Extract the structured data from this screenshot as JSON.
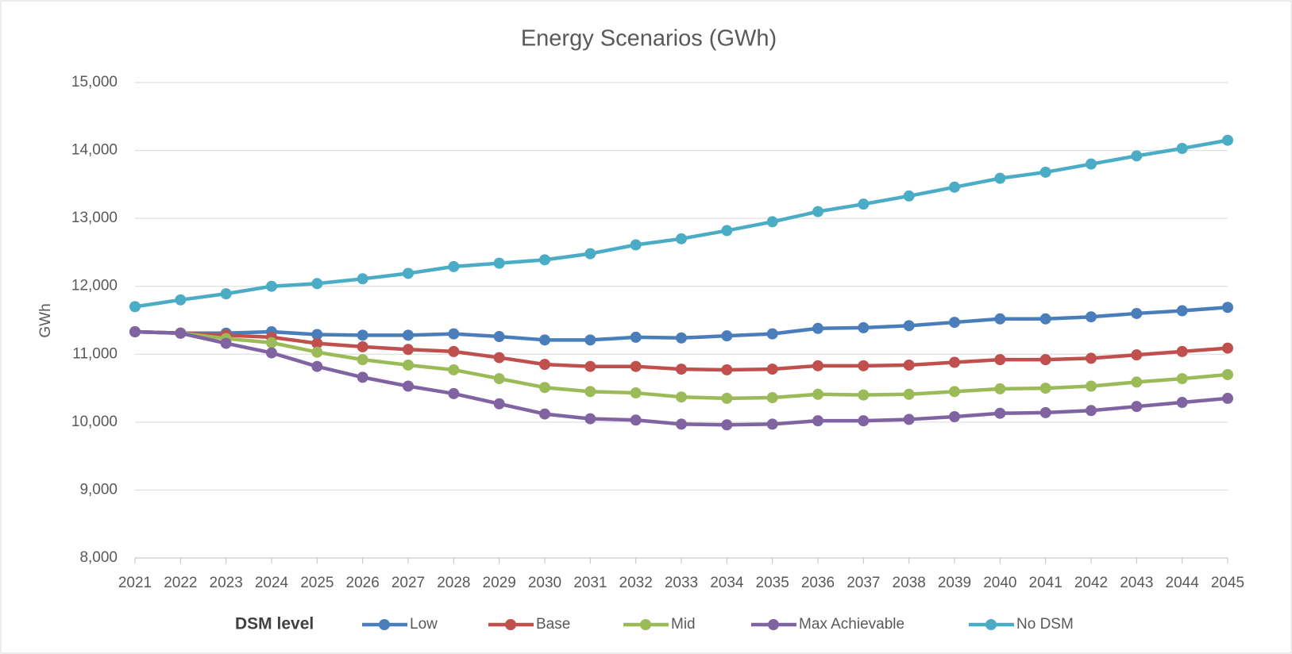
{
  "chart_data": {
    "type": "line",
    "title": "Energy Scenarios (GWh)",
    "y_label": "GWh",
    "categories": [
      "2021",
      "2022",
      "2023",
      "2024",
      "2025",
      "2026",
      "2027",
      "2028",
      "2029",
      "2030",
      "2031",
      "2032",
      "2033",
      "2034",
      "2035",
      "2036",
      "2037",
      "2038",
      "2039",
      "2040",
      "2041",
      "2042",
      "2043",
      "2044",
      "2045"
    ],
    "ylim": [
      8000,
      15000
    ],
    "yticks": [
      {
        "value": 8000,
        "label": "8,000"
      },
      {
        "value": 9000,
        "label": "9,000"
      },
      {
        "value": 10000,
        "label": "10,000"
      },
      {
        "value": 11000,
        "label": "11,000"
      },
      {
        "value": 12000,
        "label": "12,000"
      },
      {
        "value": 13000,
        "label": "13,000"
      },
      {
        "value": 14000,
        "label": "14,000"
      },
      {
        "value": 15000,
        "label": "15,000"
      }
    ],
    "grid": true,
    "legend_title": "DSM level",
    "legend_position": "bottom",
    "series": [
      {
        "name": "Low",
        "color": "#4a7ebb",
        "values": [
          11330,
          11310,
          11310,
          11330,
          11290,
          11280,
          11280,
          11300,
          11260,
          11210,
          11210,
          11250,
          11240,
          11270,
          11300,
          11380,
          11390,
          11420,
          11470,
          11520,
          11520,
          11550,
          11600,
          11640,
          11690
        ]
      },
      {
        "name": "Base",
        "color": "#c0504d",
        "values": [
          11330,
          11310,
          11280,
          11250,
          11160,
          11110,
          11070,
          11040,
          10950,
          10850,
          10820,
          10820,
          10780,
          10770,
          10780,
          10830,
          10830,
          10840,
          10880,
          10920,
          10920,
          10940,
          10990,
          11040,
          11090
        ]
      },
      {
        "name": "Mid",
        "color": "#9bbb59",
        "values": [
          11330,
          11310,
          11230,
          11170,
          11030,
          10920,
          10840,
          10770,
          10640,
          10510,
          10450,
          10430,
          10370,
          10350,
          10360,
          10410,
          10400,
          10410,
          10450,
          10490,
          10500,
          10530,
          10590,
          10640,
          10700
        ]
      },
      {
        "name": "Max Achievable",
        "color": "#8064a2",
        "values": [
          11330,
          11310,
          11160,
          11020,
          10820,
          10660,
          10530,
          10420,
          10270,
          10120,
          10050,
          10030,
          9970,
          9960,
          9970,
          10020,
          10020,
          10040,
          10080,
          10130,
          10140,
          10170,
          10230,
          10290,
          10350
        ]
      },
      {
        "name": "No DSM",
        "color": "#4bacc6",
        "values": [
          11700,
          11800,
          11890,
          12000,
          12040,
          12110,
          12190,
          12290,
          12340,
          12390,
          12480,
          12610,
          12700,
          12820,
          12950,
          13100,
          13210,
          13330,
          13460,
          13590,
          13680,
          13800,
          13920,
          14030,
          14150
        ]
      }
    ]
  }
}
